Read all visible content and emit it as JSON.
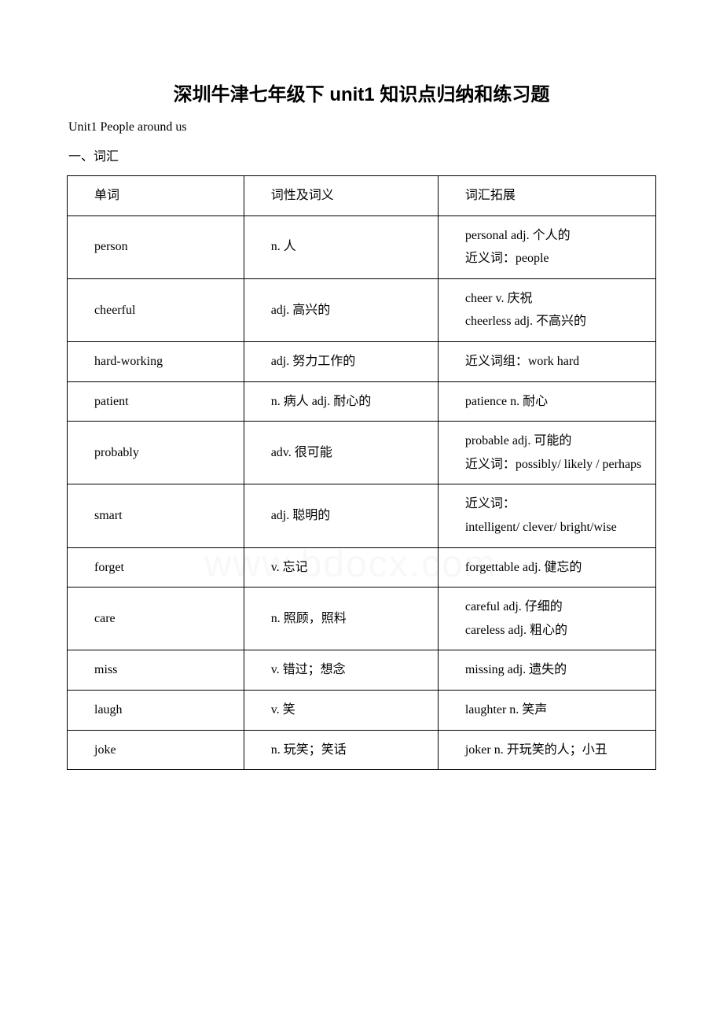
{
  "document": {
    "title": "深圳牛津七年级下 unit1 知识点归纳和练习题",
    "subtitle": "Unit1 People around us",
    "section_heading": "一、词汇",
    "watermark": "www.bdocx.com"
  },
  "table": {
    "headers": {
      "col1": "单词",
      "col2": "词性及词义",
      "col3": "词汇拓展"
    },
    "rows": [
      {
        "word": "person",
        "meaning": "n. 人",
        "expansion": [
          "personal adj. 个人的",
          "近义词：people"
        ]
      },
      {
        "word": "cheerful",
        "meaning": "adj. 高兴的",
        "expansion": [
          "cheer v. 庆祝",
          "cheerless adj. 不高兴的"
        ]
      },
      {
        "word": "hard-working",
        "meaning": "adj. 努力工作的",
        "expansion": [
          "近义词组：work hard"
        ]
      },
      {
        "word": "patient",
        "meaning": "n. 病人 adj. 耐心的",
        "expansion": [
          "patience  n. 耐心"
        ]
      },
      {
        "word": "probably",
        "meaning": "adv. 很可能",
        "expansion": [
          "probable adj. 可能的",
          "近义词：possibly/ likely / perhaps"
        ]
      },
      {
        "word": "smart",
        "meaning": "adj. 聪明的",
        "expansion": [
          "近义词：",
          "intelligent/ clever/ bright/wise"
        ]
      },
      {
        "word": "forget",
        "meaning": "v. 忘记",
        "expansion": [
          "forgettable adj. 健忘的"
        ]
      },
      {
        "word": "care",
        "meaning": "n. 照顾，照料",
        "expansion": [
          "careful adj. 仔细的",
          "careless adj. 粗心的"
        ]
      },
      {
        "word": "miss",
        "meaning": "v. 错过；想念",
        "expansion": [
          "missing adj. 遗失的"
        ]
      },
      {
        "word": "laugh",
        "meaning": "v. 笑",
        "expansion": [
          "laughter n.  笑声"
        ]
      },
      {
        "word": "joke",
        "meaning": "n. 玩笑；笑话",
        "expansion": [
          "joker n. 开玩笑的人；小丑"
        ]
      }
    ]
  },
  "colors": {
    "background": "#ffffff",
    "text": "#000000",
    "border": "#000000",
    "watermark": "#f8f8f8"
  }
}
